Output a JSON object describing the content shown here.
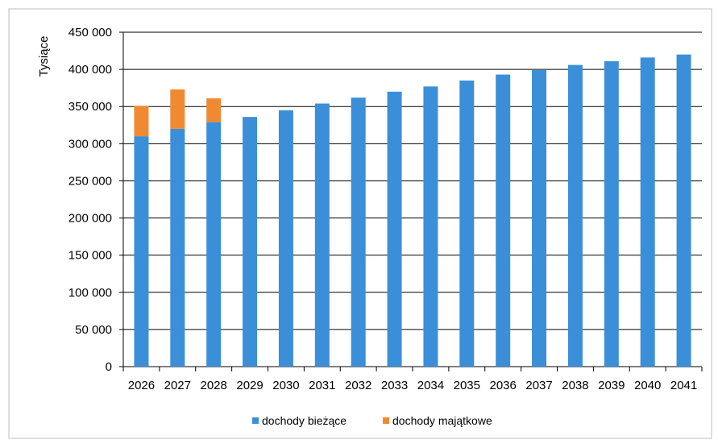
{
  "chart_data": {
    "type": "bar",
    "stacked": true,
    "ylabel": "Tysiące",
    "ylim": [
      0,
      450000
    ],
    "yticks": [
      0,
      50000,
      100000,
      150000,
      200000,
      250000,
      300000,
      350000,
      400000,
      450000
    ],
    "ytick_labels": [
      "0",
      "50 000",
      "100 000",
      "150 000",
      "200 000",
      "250 000",
      "300 000",
      "350 000",
      "400 000",
      "450 000"
    ],
    "categories": [
      "2026",
      "2027",
      "2028",
      "2029",
      "2030",
      "2031",
      "2032",
      "2033",
      "2034",
      "2035",
      "2036",
      "2037",
      "2038",
      "2039",
      "2040",
      "2041"
    ],
    "grid": "horizontal",
    "legend_position": "bottom",
    "series": [
      {
        "name": "dochody bieżące",
        "color": "#3a8fd8",
        "values": [
          310000,
          320000,
          329000,
          336000,
          345000,
          354000,
          362000,
          370000,
          377000,
          385000,
          393000,
          399000,
          406000,
          411000,
          416000,
          420000
        ]
      },
      {
        "name": "dochody majątkowe",
        "color": "#f08a32",
        "values": [
          41000,
          53000,
          32000,
          0,
          0,
          0,
          0,
          0,
          0,
          0,
          0,
          0,
          0,
          0,
          0,
          0
        ]
      }
    ]
  }
}
